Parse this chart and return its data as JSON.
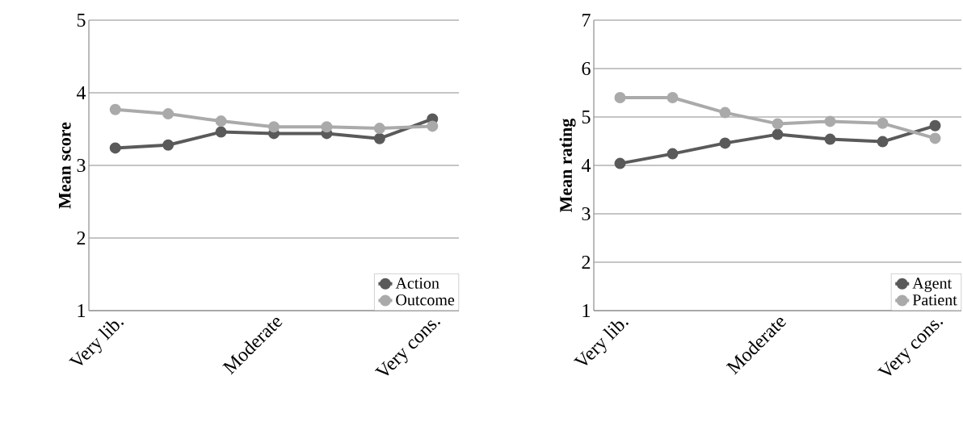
{
  "chart_data": [
    {
      "type": "line",
      "ylabel": "Mean score",
      "categories": [
        "Very lib.",
        null,
        null,
        "Moderate",
        null,
        null,
        "Very cons."
      ],
      "series": [
        {
          "name": "Action",
          "color": "#5a5a5a",
          "values": [
            3.24,
            3.28,
            3.46,
            3.44,
            3.44,
            3.37,
            3.64
          ]
        },
        {
          "name": "Outcome",
          "color": "#aaaaaa",
          "values": [
            3.77,
            3.71,
            3.61,
            3.53,
            3.53,
            3.51,
            3.54
          ]
        }
      ],
      "ylim": [
        1,
        5
      ],
      "yticks": [
        1,
        2,
        3,
        4,
        5
      ],
      "grid": "y",
      "legend": "bottom right",
      "marker": "circle"
    },
    {
      "type": "line",
      "ylabel": "Mean rating",
      "categories": [
        "Very lib.",
        null,
        null,
        "Moderate",
        null,
        null,
        "Very cons."
      ],
      "series": [
        {
          "name": "Agent",
          "color": "#5a5a5a",
          "values": [
            4.04,
            4.24,
            4.46,
            4.64,
            4.54,
            4.49,
            4.82
          ]
        },
        {
          "name": "Patient",
          "color": "#aaaaaa",
          "values": [
            5.4,
            5.4,
            5.09,
            4.86,
            4.91,
            4.87,
            4.56
          ]
        }
      ],
      "ylim": [
        1,
        7
      ],
      "yticks": [
        1,
        2,
        3,
        4,
        5,
        6,
        7
      ],
      "grid": "y",
      "legend": "bottom right",
      "marker": "circle"
    }
  ]
}
